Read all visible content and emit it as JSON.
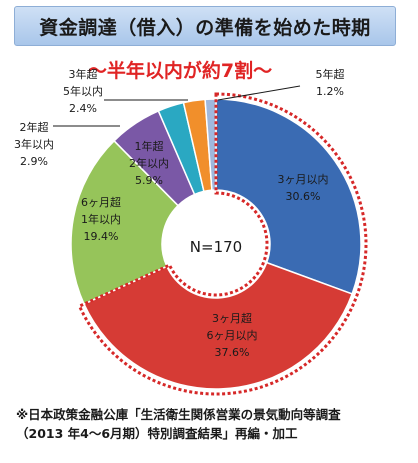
{
  "chart_data": {
    "type": "pie",
    "title": "資金調達（借入）の準備を始めた時期",
    "subtitle": "～半年以内が約7割～",
    "center_label": "N=170",
    "slices": [
      {
        "label_lines": [
          "3ヶ月以内"
        ],
        "value": 30.6,
        "value_text": "30.6%",
        "color": "#3a6bb3",
        "highlighted": true
      },
      {
        "label_lines": [
          "3ヶ月超",
          "6ヶ月以内"
        ],
        "value": 37.6,
        "value_text": "37.6%",
        "color": "#d63b35",
        "highlighted": true
      },
      {
        "label_lines": [
          "6ヶ月超",
          "1年以内"
        ],
        "value": 19.4,
        "value_text": "19.4%",
        "color": "#96c45a",
        "highlighted": false
      },
      {
        "label_lines": [
          "1年超",
          "2年以内"
        ],
        "value": 5.9,
        "value_text": "5.9%",
        "color": "#7a58a6",
        "highlighted": false
      },
      {
        "label_lines": [
          "2年超",
          "3年以内"
        ],
        "value": 2.9,
        "value_text": "2.9%",
        "color": "#2aa8c2",
        "highlighted": false
      },
      {
        "label_lines": [
          "3年超",
          "5年以内"
        ],
        "value": 2.4,
        "value_text": "2.4%",
        "color": "#f18f2b",
        "highlighted": false
      },
      {
        "label_lines": [
          "5年超"
        ],
        "value": 1.2,
        "value_text": "1.2%",
        "color": "#9fb8dd",
        "highlighted": false
      }
    ]
  },
  "footnote": {
    "line1": "※日本政策金融公庫「生活衛生関係営業の景気動向等調査",
    "line2": "（2013 年4～6月期）特別調査結果」再編・加工"
  }
}
